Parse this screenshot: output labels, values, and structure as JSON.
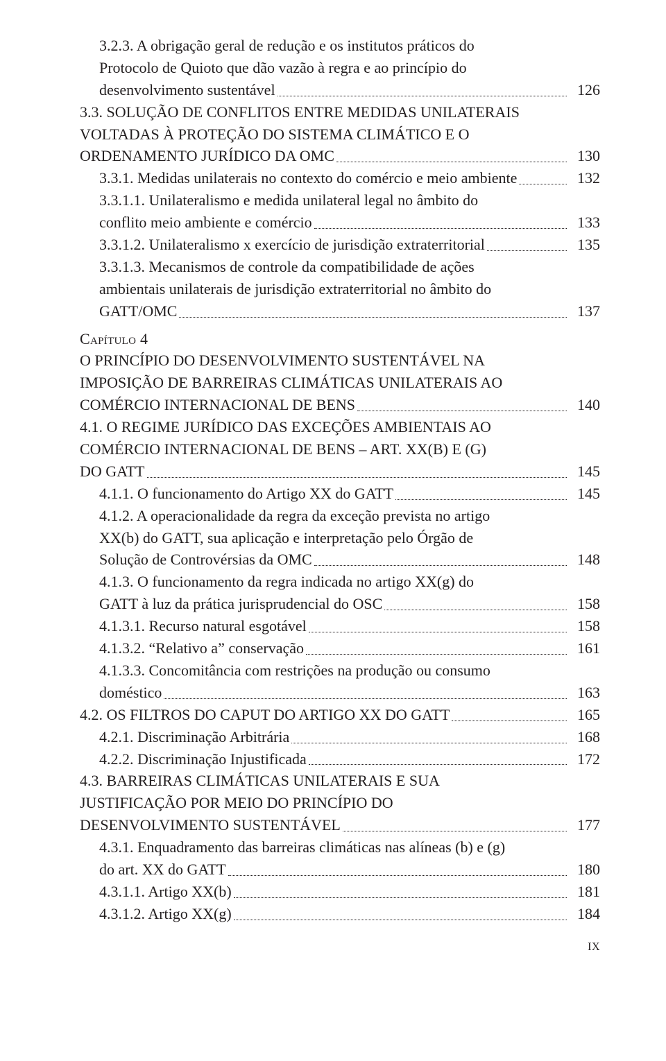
{
  "folio": "IX",
  "entries": [
    {
      "indent": 1,
      "lines": [
        "3.2.3. A obrigação geral de redução e os institutos práticos do",
        "Protocolo de Quioto que dão vazão à regra e ao princípio do",
        "desenvolvimento sustentável"
      ],
      "page": "126"
    },
    {
      "indent": 0,
      "lines": [
        "3.3. SOLUÇÃO DE CONFLITOS ENTRE MEDIDAS UNILATERAIS",
        "VOLTADAS À PROTEÇÃO DO SISTEMA CLIMÁTICO E O",
        "ORDENAMENTO JURÍDICO DA OMC"
      ],
      "page": "130"
    },
    {
      "indent": 1,
      "lines": [
        "3.3.1. Medidas unilaterais no contexto do comércio e meio ambiente"
      ],
      "page": "132"
    },
    {
      "indent": 1,
      "lines": [
        "3.3.1.1. Unilateralismo e medida unilateral legal no âmbito do",
        "conflito meio ambiente e comércio"
      ],
      "page": "133"
    },
    {
      "indent": 1,
      "lines": [
        "3.3.1.2. Unilateralismo x exercício de jurisdição extraterritorial"
      ],
      "page": "135"
    },
    {
      "indent": 1,
      "lines": [
        "3.3.1.3. Mecanismos de controle da compatibilidade de ações",
        "ambientais unilaterais de jurisdição extraterritorial no âmbito do",
        "GATT/OMC"
      ],
      "page": "137"
    },
    {
      "chapter": "Capítulo 4"
    },
    {
      "indent": 0,
      "lines": [
        "O PRINCÍPIO DO DESENVOLVIMENTO SUSTENTÁVEL NA",
        "IMPOSIÇÃO DE BARREIRAS CLIMÁTICAS UNILATERAIS AO",
        "COMÉRCIO INTERNACIONAL DE BENS"
      ],
      "page": "140"
    },
    {
      "indent": 0,
      "lines": [
        "4.1. O REGIME JURÍDICO DAS EXCEÇÕES AMBIENTAIS AO",
        "COMÉRCIO INTERNACIONAL DE BENS – ART. XX(B) E (G)",
        "DO GATT"
      ],
      "page": "145"
    },
    {
      "indent": 1,
      "lines": [
        "4.1.1. O funcionamento do Artigo XX do GATT"
      ],
      "page": "145"
    },
    {
      "indent": 1,
      "lines": [
        "4.1.2. A operacionalidade da regra da exceção prevista no artigo",
        "XX(b) do GATT, sua aplicação e interpretação pelo Órgão de",
        "Solução de Controvérsias da OMC"
      ],
      "page": "148"
    },
    {
      "indent": 1,
      "lines": [
        "4.1.3. O funcionamento da regra indicada no artigo XX(g) do",
        "GATT à luz da prática jurisprudencial do OSC"
      ],
      "page": "158"
    },
    {
      "indent": 1,
      "lines": [
        "4.1.3.1. Recurso natural esgotável"
      ],
      "page": "158"
    },
    {
      "indent": 1,
      "lines": [
        "4.1.3.2. “Relativo a” conservação"
      ],
      "page": "161"
    },
    {
      "indent": 1,
      "lines": [
        "4.1.3.3. Concomitância com restrições na produção ou consumo",
        "doméstico"
      ],
      "page": "163"
    },
    {
      "indent": 0,
      "lines": [
        "4.2. OS FILTROS DO CAPUT DO ARTIGO XX DO GATT"
      ],
      "page": "165"
    },
    {
      "indent": 1,
      "lines": [
        "4.2.1. Discriminação Arbitrária"
      ],
      "page": "168"
    },
    {
      "indent": 1,
      "lines": [
        "4.2.2. Discriminação Injustificada"
      ],
      "page": "172"
    },
    {
      "indent": 0,
      "lines": [
        "4.3. BARREIRAS CLIMÁTICAS UNILATERAIS E SUA",
        "JUSTIFICAÇÃO POR MEIO DO PRINCÍPIO DO",
        "DESENVOLVIMENTO SUSTENTÁVEL"
      ],
      "page": "177"
    },
    {
      "indent": 1,
      "lines": [
        "4.3.1. Enquadramento das barreiras climáticas nas alíneas (b) e (g)",
        "do art. XX do GATT"
      ],
      "page": "180"
    },
    {
      "indent": 1,
      "lines": [
        "4.3.1.1. Artigo XX(b)"
      ],
      "page": "181"
    },
    {
      "indent": 1,
      "lines": [
        "4.3.1.2. Artigo XX(g)"
      ],
      "page": "184"
    }
  ]
}
